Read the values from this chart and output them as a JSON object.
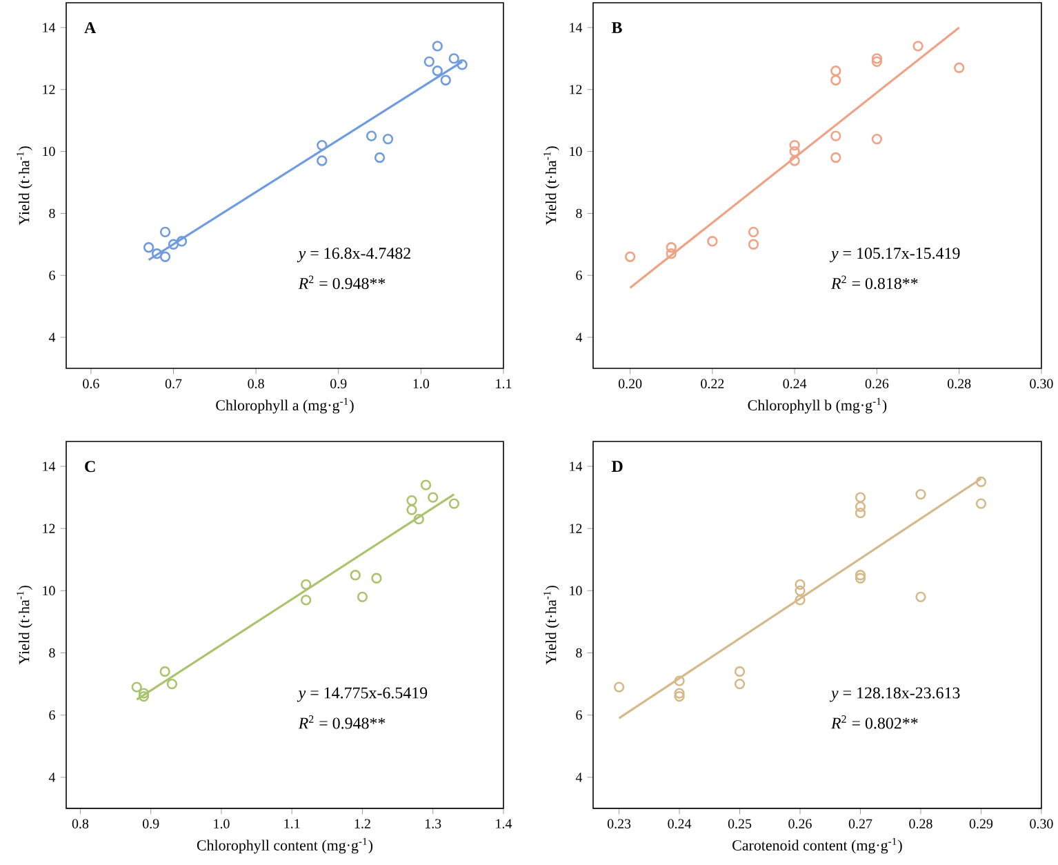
{
  "chart_data": [
    {
      "type": "scatter",
      "title": "A",
      "xlabel": "Chlorophyll a (mg·g$^{-1}$)",
      "ylabel": "Yield (t·ha$^{-1}$)",
      "xlim": [
        0.57,
        1.1
      ],
      "ylim": [
        3,
        14.8
      ],
      "xticks": [
        0.6,
        0.7,
        0.8,
        0.9,
        {
          "value": 1.0,
          "label": "1.0"
        },
        1.1
      ],
      "yticks": [
        4,
        6,
        8,
        10,
        12,
        14
      ],
      "annotations": [
        "*y* = 16.8x-4.7482",
        "*R*$^{2}$ = 0.948**"
      ],
      "series": [
        {
          "marker": "circle",
          "color": "#6f9be0",
          "x": [
            0.67,
            0.68,
            0.69,
            0.69,
            0.7,
            0.71,
            0.88,
            0.88,
            0.94,
            0.96,
            0.95,
            1.02,
            1.01,
            1.02,
            1.04,
            1.05,
            1.03
          ],
          "values": [
            6.9,
            6.7,
            6.6,
            7.4,
            7.0,
            7.1,
            10.2,
            9.7,
            10.5,
            10.4,
            9.8,
            13.4,
            12.9,
            12.6,
            13.0,
            12.8,
            12.3
          ]
        },
        {
          "type": "line",
          "color": "#6f9be0",
          "x": [
            0.67,
            1.05
          ],
          "values": [
            6.5,
            12.9
          ]
        }
      ]
    },
    {
      "type": "scatter",
      "title": "B",
      "xlabel": "Chlorophyll b (mg·g$^{-1}$)",
      "ylabel": "Yield (t·ha$^{-1}$)",
      "xlim": [
        0.191,
        0.3
      ],
      "ylim": [
        3,
        14.8
      ],
      "xticks": [
        {
          "value": 0.2,
          "label": "0.20"
        },
        0.22,
        0.24,
        0.26,
        0.28,
        {
          "value": 0.3,
          "label": "0.30"
        }
      ],
      "yticks": [
        4,
        6,
        8,
        10,
        12,
        14
      ],
      "annotations": [
        "*y* = 105.17x-15.419",
        "*R*$^{2}$ = 0.818**"
      ],
      "series": [
        {
          "marker": "circle",
          "color": "#f0a284",
          "x": [
            0.2,
            0.21,
            0.21,
            0.22,
            0.23,
            0.23,
            0.24,
            0.24,
            0.24,
            0.25,
            0.25,
            0.25,
            0.25,
            0.26,
            0.26,
            0.26,
            0.27,
            0.28
          ],
          "values": [
            6.6,
            6.9,
            6.7,
            7.1,
            7.4,
            7.0,
            10.2,
            10.0,
            9.7,
            12.6,
            12.3,
            10.5,
            9.8,
            13.0,
            12.9,
            10.4,
            13.4,
            12.7
          ]
        },
        {
          "type": "line",
          "color": "#f0a284",
          "x": [
            0.2,
            0.28
          ],
          "values": [
            5.6,
            14.0
          ]
        }
      ]
    },
    {
      "type": "scatter",
      "title": "C",
      "xlabel": "Chlorophyll content (mg·g$^{-1}$)",
      "ylabel": "Yield (t·ha$^{-1}$)",
      "xlim": [
        0.78,
        1.4
      ],
      "ylim": [
        3,
        14.8
      ],
      "xticks": [
        0.8,
        0.9,
        {
          "value": 1.0,
          "label": "1.0"
        },
        1.1,
        1.2,
        1.3,
        1.4
      ],
      "yticks": [
        4,
        6,
        8,
        10,
        12,
        14
      ],
      "annotations": [
        "*y* = 14.775x-6.5419",
        "*R*$^{2}$ = 0.948**"
      ],
      "series": [
        {
          "marker": "circle",
          "color": "#a9c46c",
          "x": [
            0.88,
            0.89,
            0.89,
            0.92,
            0.93,
            1.12,
            1.12,
            1.19,
            1.22,
            1.2,
            1.27,
            1.27,
            1.29,
            1.3,
            1.28,
            1.33
          ],
          "values": [
            6.9,
            6.7,
            6.6,
            7.4,
            7.0,
            10.2,
            9.7,
            10.5,
            10.4,
            9.8,
            12.9,
            12.6,
            13.4,
            13.0,
            12.3,
            12.8
          ]
        },
        {
          "type": "line",
          "color": "#a9c46c",
          "x": [
            0.88,
            1.33
          ],
          "values": [
            6.5,
            13.1
          ]
        }
      ]
    },
    {
      "type": "scatter",
      "title": "D",
      "xlabel": "Carotenoid content (mg·g$^{-1}$)",
      "ylabel": "Yield (t·ha$^{-1}$)",
      "xlim": [
        0.2257,
        0.3
      ],
      "ylim": [
        3,
        14.8
      ],
      "xticks": [
        0.23,
        0.24,
        0.25,
        0.26,
        0.27,
        0.28,
        0.29,
        {
          "value": 0.3,
          "label": "0.30"
        }
      ],
      "yticks": [
        4,
        6,
        8,
        10,
        12,
        14
      ],
      "annotations": [
        "*y* = 128.18x-23.613",
        "*R*$^{2}$ = 0.802**"
      ],
      "series": [
        {
          "marker": "circle",
          "color": "#d6b98a",
          "x": [
            0.23,
            0.24,
            0.24,
            0.24,
            0.25,
            0.25,
            0.26,
            0.26,
            0.26,
            0.27,
            0.27,
            0.27,
            0.27,
            0.27,
            0.28,
            0.28,
            0.29,
            0.29
          ],
          "values": [
            6.9,
            7.1,
            6.7,
            6.6,
            7.4,
            7.0,
            10.2,
            10.0,
            9.7,
            13.0,
            12.7,
            12.5,
            10.5,
            10.4,
            13.1,
            9.8,
            13.5,
            12.8
          ]
        },
        {
          "type": "line",
          "color": "#d6b98a",
          "x": [
            0.23,
            0.29
          ],
          "values": [
            5.9,
            13.6
          ]
        }
      ]
    }
  ]
}
